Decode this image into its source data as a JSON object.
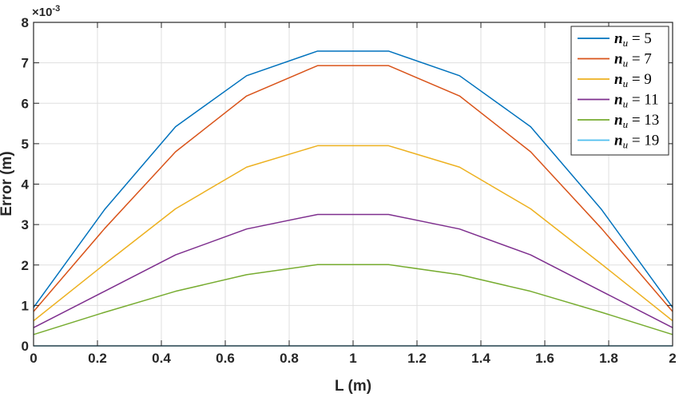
{
  "chart_data": {
    "type": "line",
    "xlabel": "L (m)",
    "ylabel": "Error (m)",
    "y_multiplier": "×10",
    "y_exponent": "-3",
    "xlim": [
      0,
      2
    ],
    "ylim": [
      0,
      8
    ],
    "x_ticks": [
      "0",
      "0.2",
      "0.4",
      "0.6",
      "0.8",
      "1",
      "1.2",
      "1.4",
      "1.6",
      "1.8",
      "2"
    ],
    "y_ticks": [
      "0",
      "1",
      "2",
      "3",
      "4",
      "5",
      "6",
      "7",
      "8"
    ],
    "grid": true,
    "legend_position": "top-right",
    "x": [
      0,
      0.2222,
      0.4444,
      0.6667,
      0.8889,
      1.1111,
      1.3333,
      1.5556,
      1.7778,
      2
    ],
    "series": [
      {
        "name": "n_u = 5",
        "name_symbol": "n",
        "name_subscript": "u",
        "name_rest": " = 5",
        "color": "#0072BD",
        "values": [
          0.95,
          3.37,
          5.42,
          6.68,
          7.29,
          7.29,
          6.68,
          5.42,
          3.37,
          0.95
        ]
      },
      {
        "name": "n_u = 7",
        "name_symbol": "n",
        "name_subscript": "u",
        "name_rest": " = 7",
        "color": "#D95319",
        "values": [
          0.85,
          2.9,
          4.8,
          6.18,
          6.93,
          6.93,
          6.18,
          4.8,
          2.9,
          0.85
        ]
      },
      {
        "name": "n_u = 9",
        "name_symbol": "n",
        "name_subscript": "u",
        "name_rest": " = 9",
        "color": "#EDB120",
        "values": [
          0.62,
          2.02,
          3.39,
          4.42,
          4.95,
          4.95,
          4.42,
          3.39,
          2.02,
          0.62
        ]
      },
      {
        "name": "n_u = 11",
        "name_symbol": "n",
        "name_subscript": "u",
        "name_rest": " = 11",
        "color": "#7E2F8E",
        "values": [
          0.45,
          1.35,
          2.25,
          2.89,
          3.25,
          3.25,
          2.89,
          2.25,
          1.35,
          0.45
        ]
      },
      {
        "name": "n_u = 13",
        "name_symbol": "n",
        "name_subscript": "u",
        "name_rest": " = 13",
        "color": "#77AC30",
        "values": [
          0.28,
          0.83,
          1.35,
          1.76,
          2.01,
          2.01,
          1.76,
          1.35,
          0.83,
          0.28
        ]
      },
      {
        "name": "n_u = 19",
        "name_symbol": "n",
        "name_subscript": "u",
        "name_rest": " = 19",
        "color": "#4DBEEE",
        "values": [
          0,
          0,
          0,
          0,
          0,
          0,
          0,
          0,
          0,
          0
        ]
      }
    ]
  }
}
